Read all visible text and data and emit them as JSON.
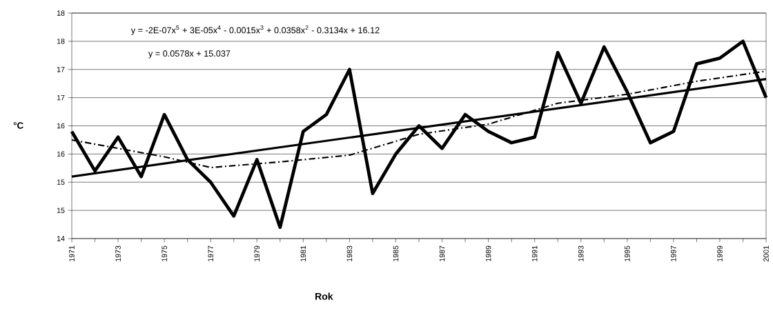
{
  "chart_data": {
    "type": "line",
    "xlabel": "Rok",
    "ylabel": "°C",
    "x": [
      1971,
      1972,
      1973,
      1974,
      1975,
      1976,
      1977,
      1978,
      1979,
      1980,
      1981,
      1982,
      1983,
      1984,
      1985,
      1986,
      1987,
      1988,
      1989,
      1990,
      1991,
      1992,
      1993,
      1994,
      1995,
      1996,
      1997,
      1998,
      1999,
      2000,
      2001
    ],
    "series": [
      {
        "color": "#000000",
        "values": [
          15.9,
          15.2,
          15.8,
          15.1,
          16.2,
          15.4,
          15.0,
          14.4,
          15.4,
          14.2,
          15.9,
          16.2,
          17.0,
          14.8,
          15.5,
          16.0,
          15.6,
          16.2,
          15.9,
          15.7,
          15.8,
          17.3,
          16.4,
          17.4,
          16.6,
          15.7,
          15.9,
          17.1,
          17.2,
          17.5,
          16.5
        ]
      },
      {
        "type": "line",
        "color": "#000000",
        "x": [
          1971,
          2001
        ],
        "values": [
          15.1,
          16.83
        ]
      },
      {
        "type": "line",
        "color": "#000000",
        "line_style": "dashdot",
        "x": [
          1971,
          1975,
          1977,
          1980,
          1983,
          1986,
          1989,
          1992,
          1995,
          1998,
          2001
        ],
        "values": [
          15.75,
          15.45,
          15.26,
          15.36,
          15.48,
          15.85,
          16.03,
          16.4,
          16.56,
          16.79,
          16.97
        ]
      }
    ],
    "xlim": [
      1971,
      2001
    ],
    "xticks": [
      1971,
      {
        "value": 1972,
        "label": null
      },
      1973,
      {
        "value": 1974,
        "label": null
      },
      1975,
      {
        "value": 1976,
        "label": null
      },
      1977,
      {
        "value": 1978,
        "label": null
      },
      1979,
      {
        "value": 1980,
        "label": null
      },
      1981,
      {
        "value": 1982,
        "label": null
      },
      1983,
      {
        "value": 1984,
        "label": null
      },
      1985,
      {
        "value": 1986,
        "label": null
      },
      1987,
      {
        "value": 1988,
        "label": null
      },
      1989,
      {
        "value": 1990,
        "label": null
      },
      1991,
      {
        "value": 1992,
        "label": null
      },
      1993,
      {
        "value": 1994,
        "label": null
      },
      1995,
      {
        "value": 1996,
        "label": null
      },
      1997,
      {
        "value": 1998,
        "label": null
      },
      1999,
      {
        "value": 2000,
        "label": null
      },
      2001
    ],
    "ylim": [
      14,
      18
    ],
    "yticks": [
      14,
      {
        "value": 14.5,
        "label": "15"
      },
      15,
      {
        "value": 15.5,
        "label": "16"
      },
      16,
      {
        "value": 16.5,
        "label": "17"
      },
      17,
      {
        "value": 17.5,
        "label": "18"
      },
      18
    ],
    "grid": "y",
    "marker": "none",
    "line_style": "solid",
    "annotations": [
      "y = -2E-07x$^{5}$ + 3E-05x$^{4}$ - 0.0015x$^{3}$ + 0.0358x$^{2}$ - 0.3134x + 16.12",
      "y = 0.0578x + 15.037"
    ]
  }
}
